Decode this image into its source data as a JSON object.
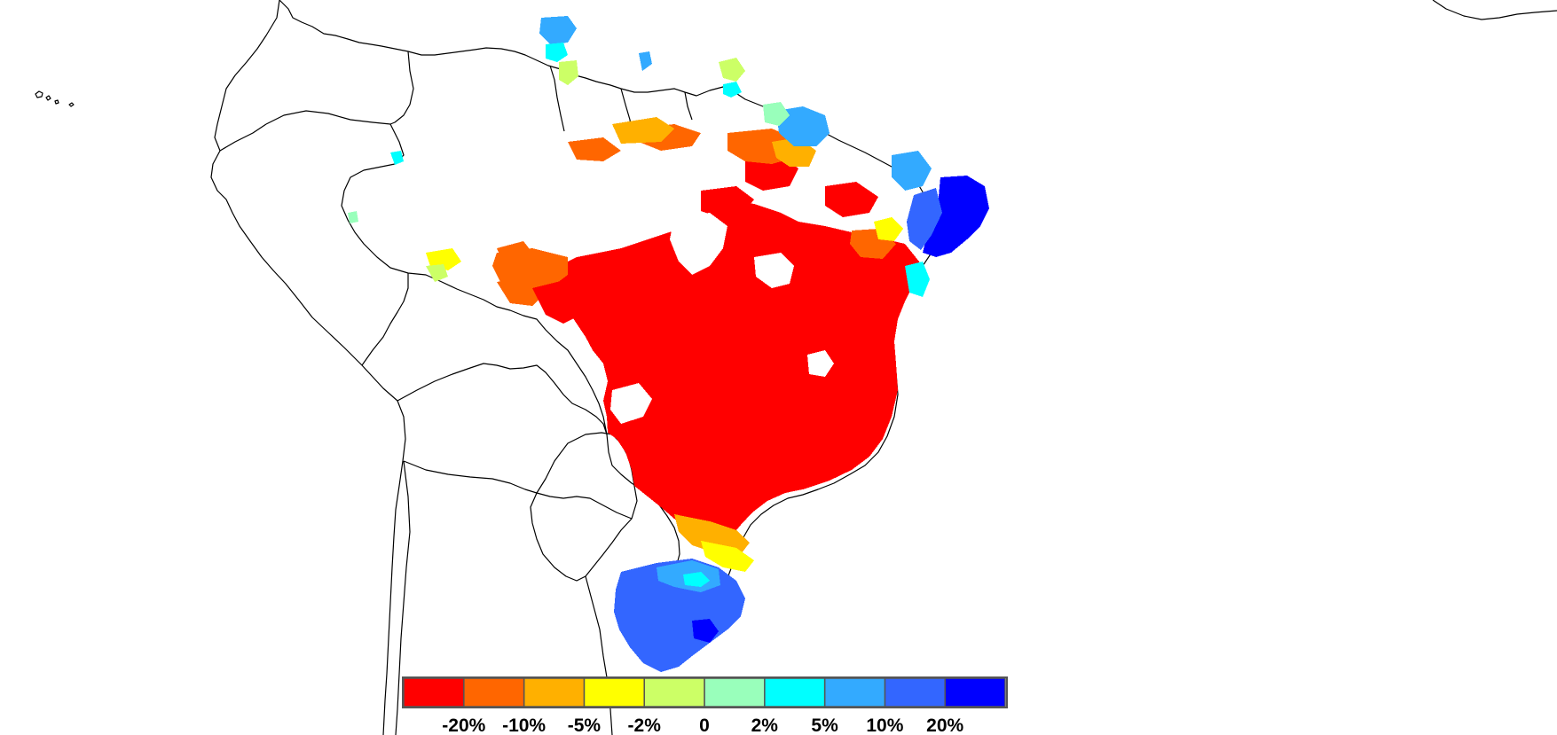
{
  "legend": {
    "swatches": [
      {
        "color": "#ff0000"
      },
      {
        "color": "#ff6600"
      },
      {
        "color": "#ffb000"
      },
      {
        "color": "#ffff00"
      },
      {
        "color": "#ccff66"
      },
      {
        "color": "#99ffbb"
      },
      {
        "color": "#00ffff"
      },
      {
        "color": "#33aaff"
      },
      {
        "color": "#3366ff"
      },
      {
        "color": "#0000ff"
      }
    ],
    "labels": [
      "-20%",
      "-10%",
      "-5%",
      "-2%",
      "0",
      "2%",
      "5%",
      "10%",
      "20%"
    ]
  },
  "colors": {
    "outline": "#000000",
    "background": "#ffffff"
  }
}
